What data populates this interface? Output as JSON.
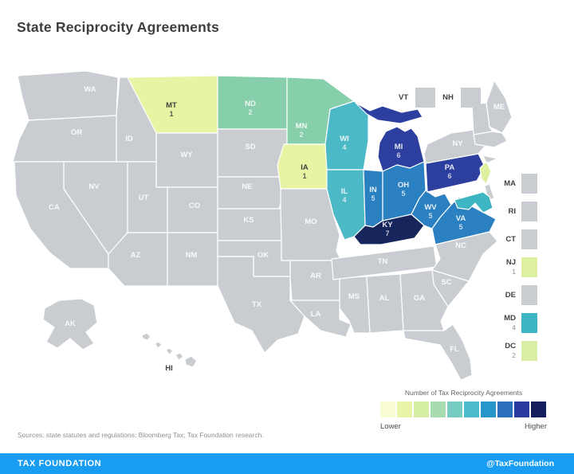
{
  "title": "State Reciprocity Agreements",
  "source_note": "Sources: state statutes and regulations; Bloomberg Tax; Tax Foundation research.",
  "footer": {
    "brand": "TAX FOUNDATION",
    "handle": "@TaxFoundation",
    "bar_color": "#189df2"
  },
  "legend": {
    "title": "Number of Tax Reciprocity Agreements",
    "low_label": "Lower",
    "high_label": "Higher",
    "colors": [
      "#f9fbd2",
      "#eaf4a8",
      "#d4eda2",
      "#a6dcae",
      "#76ccc0",
      "#4cbcca",
      "#2697c8",
      "#2b70bd",
      "#2b3a9e",
      "#161f5e"
    ]
  },
  "map": {
    "no_data_fill": "#c9cdd1",
    "states": [
      {
        "abbr": "WA",
        "value": null,
        "fill": "#c9cdd1",
        "label_style": "light"
      },
      {
        "abbr": "OR",
        "value": null,
        "fill": "#c9cdd1",
        "label_style": "light"
      },
      {
        "abbr": "CA",
        "value": null,
        "fill": "#c9cdd1",
        "label_style": "light"
      },
      {
        "abbr": "NV",
        "value": null,
        "fill": "#c9cdd1",
        "label_style": "light"
      },
      {
        "abbr": "ID",
        "value": null,
        "fill": "#c9cdd1",
        "label_style": "light"
      },
      {
        "abbr": "MT",
        "value": 1,
        "fill": "#e8f3a4",
        "label_style": "dark"
      },
      {
        "abbr": "WY",
        "value": null,
        "fill": "#c9cdd1",
        "label_style": "light"
      },
      {
        "abbr": "UT",
        "value": null,
        "fill": "#c9cdd1",
        "label_style": "light"
      },
      {
        "abbr": "CO",
        "value": null,
        "fill": "#c9cdd1",
        "label_style": "light"
      },
      {
        "abbr": "AZ",
        "value": null,
        "fill": "#c9cdd1",
        "label_style": "light"
      },
      {
        "abbr": "NM",
        "value": null,
        "fill": "#c9cdd1",
        "label_style": "light"
      },
      {
        "abbr": "ND",
        "value": 2,
        "fill": "#87cfaa",
        "label_style": "light"
      },
      {
        "abbr": "SD",
        "value": null,
        "fill": "#c9cdd1",
        "label_style": "light"
      },
      {
        "abbr": "NE",
        "value": null,
        "fill": "#c9cdd1",
        "label_style": "light"
      },
      {
        "abbr": "KS",
        "value": null,
        "fill": "#c9cdd1",
        "label_style": "light"
      },
      {
        "abbr": "OK",
        "value": null,
        "fill": "#c9cdd1",
        "label_style": "light"
      },
      {
        "abbr": "TX",
        "value": null,
        "fill": "#c9cdd1",
        "label_style": "light"
      },
      {
        "abbr": "MN",
        "value": 2,
        "fill": "#87cfaa",
        "label_style": "light"
      },
      {
        "abbr": "IA",
        "value": 1,
        "fill": "#e8f3a4",
        "label_style": "dark"
      },
      {
        "abbr": "MO",
        "value": null,
        "fill": "#c9cdd1",
        "label_style": "light"
      },
      {
        "abbr": "AR",
        "value": null,
        "fill": "#c9cdd1",
        "label_style": "light"
      },
      {
        "abbr": "LA",
        "value": null,
        "fill": "#c9cdd1",
        "label_style": "light"
      },
      {
        "abbr": "WI",
        "value": 4,
        "fill": "#4cb9c6",
        "label_style": "light"
      },
      {
        "abbr": "IL",
        "value": 4,
        "fill": "#4cb9c6",
        "label_style": "light"
      },
      {
        "abbr": "MS",
        "value": null,
        "fill": "#c9cdd1",
        "label_style": "light"
      },
      {
        "abbr": "MI",
        "value": 6,
        "fill": "#2c3f9f",
        "label_style": "light"
      },
      {
        "abbr": "IN",
        "value": 5,
        "fill": "#2b80c2",
        "label_style": "light"
      },
      {
        "abbr": "KY",
        "value": 7,
        "fill": "#16265c",
        "label_style": "light"
      },
      {
        "abbr": "TN",
        "value": null,
        "fill": "#c9cdd1",
        "label_style": "light"
      },
      {
        "abbr": "AL",
        "value": null,
        "fill": "#c9cdd1",
        "label_style": "light"
      },
      {
        "abbr": "OH",
        "value": 5,
        "fill": "#2b80c2",
        "label_style": "light"
      },
      {
        "abbr": "WV",
        "value": 5,
        "fill": "#2b80c2",
        "label_style": "light"
      },
      {
        "abbr": "VA",
        "value": 5,
        "fill": "#2b80c2",
        "label_style": "light"
      },
      {
        "abbr": "NC",
        "value": null,
        "fill": "#c9cdd1",
        "label_style": "light"
      },
      {
        "abbr": "SC",
        "value": null,
        "fill": "#c9cdd1",
        "label_style": "light"
      },
      {
        "abbr": "GA",
        "value": null,
        "fill": "#c9cdd1",
        "label_style": "light"
      },
      {
        "abbr": "FL",
        "value": null,
        "fill": "#c9cdd1",
        "label_style": "light"
      },
      {
        "abbr": "PA",
        "value": 6,
        "fill": "#2c3f9f",
        "label_style": "light"
      },
      {
        "abbr": "NY",
        "value": null,
        "fill": "#c9cdd1",
        "label_style": "light"
      },
      {
        "abbr": "ME",
        "value": null,
        "fill": "#c9cdd1",
        "label_style": "light"
      },
      {
        "abbr": "AK",
        "value": null,
        "fill": "#c9cdd1",
        "label_style": "light"
      },
      {
        "abbr": "HI",
        "value": null,
        "fill": "#c9cdd1",
        "label_style": "dark"
      }
    ],
    "overlays": [
      {
        "name": "vermont-new-hampshire-area",
        "fill": "#c9cdd1"
      },
      {
        "name": "massachusetts-ct-ri-area",
        "fill": "#c9cdd1"
      },
      {
        "name": "long-island",
        "fill": "#c9cdd1"
      },
      {
        "name": "new-jersey",
        "fill": "#ddf0a0"
      },
      {
        "name": "delaware",
        "fill": "#c9cdd1"
      },
      {
        "name": "maryland",
        "fill": "#3eb5c2"
      }
    ]
  },
  "northeast_chips": [
    {
      "abbr": "VT",
      "fill": "#c9cdd1"
    },
    {
      "abbr": "NH",
      "fill": "#c9cdd1"
    }
  ],
  "side_panel": [
    {
      "abbr": "MA",
      "value": null,
      "fill": "#c9cdd1"
    },
    {
      "abbr": "RI",
      "value": null,
      "fill": "#c9cdd1"
    },
    {
      "abbr": "CT",
      "value": null,
      "fill": "#c9cdd1"
    },
    {
      "abbr": "NJ",
      "value": 1,
      "fill": "#ddf0a0"
    },
    {
      "abbr": "DE",
      "value": null,
      "fill": "#c9cdd1"
    },
    {
      "abbr": "MD",
      "value": 4,
      "fill": "#3eb5c2"
    },
    {
      "abbr": "DC",
      "value": 2,
      "fill": "#d9efa6"
    }
  ],
  "chart_data": {
    "type": "heatmap",
    "subtype": "us-choropleth",
    "title": "State Reciprocity Agreements",
    "legend_title": "Number of Tax Reciprocity Agreements",
    "legend_range_labels": [
      "Lower",
      "Higher"
    ],
    "values": {
      "MT": 1,
      "IA": 1,
      "NJ": 1,
      "ND": 2,
      "MN": 2,
      "DC": 2,
      "WI": 4,
      "IL": 4,
      "MD": 4,
      "IN": 5,
      "OH": 5,
      "WV": 5,
      "VA": 5,
      "MI": 6,
      "PA": 6,
      "KY": 7
    },
    "states_without_agreements": [
      "WA",
      "OR",
      "CA",
      "NV",
      "ID",
      "WY",
      "UT",
      "CO",
      "AZ",
      "NM",
      "SD",
      "NE",
      "KS",
      "OK",
      "TX",
      "MO",
      "AR",
      "LA",
      "MS",
      "TN",
      "AL",
      "GA",
      "SC",
      "NC",
      "FL",
      "NY",
      "ME",
      "VT",
      "NH",
      "MA",
      "RI",
      "CT",
      "DE",
      "AK",
      "HI"
    ]
  }
}
